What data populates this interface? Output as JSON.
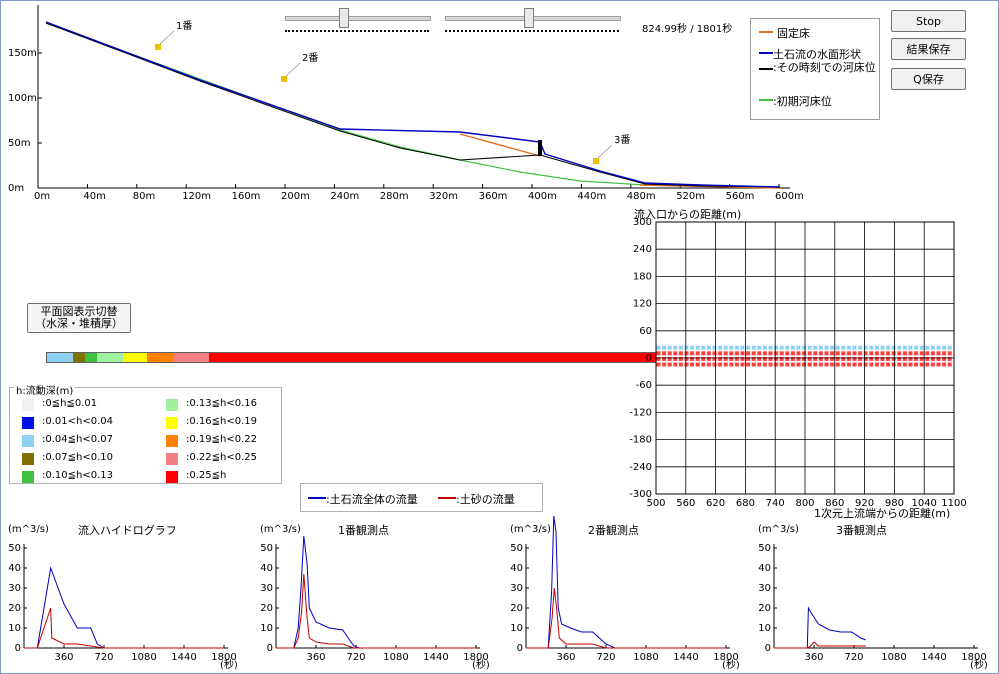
{
  "profile": {
    "points": [
      {
        "label": "1番",
        "x": 95
      },
      {
        "label": "2番",
        "x": 197
      },
      {
        "label": "3番",
        "x": 446
      }
    ],
    "y_ticks": [
      "0m",
      "50m",
      "100m",
      "150m"
    ],
    "x_ticks": [
      "0m",
      "40m",
      "80m",
      "120m",
      "160m",
      "200m",
      "240m",
      "280m",
      "320m",
      "360m",
      "400m",
      "440m",
      "480m",
      "520m",
      "560m",
      "600m"
    ],
    "time_current": "824.99秒",
    "time_separator": "/",
    "time_total": "1801秒"
  },
  "legend_top": {
    "items": [
      {
        "label": "固定床",
        "color": "#e07020"
      },
      {
        "label": "土石流の水面形状",
        "color": "#0000c0"
      },
      {
        "label": ":その時刻での河床位",
        "color": "#000000"
      },
      {
        "label": ":初期河床位",
        "color": "#40c040"
      }
    ]
  },
  "buttons": {
    "stop": "Stop",
    "save_results": "結果保存",
    "save_q": "Q保存",
    "toggle_line1": "平面図表示切替",
    "toggle_line2": "（水深・堆積厚）"
  },
  "plan_view": {
    "title": "流入口からの距離(m)",
    "x_axis_title": "1次元上流端からの距離(m)",
    "x_ticks": [
      "500",
      "560",
      "620",
      "680",
      "740",
      "800",
      "860",
      "920",
      "980",
      "1040",
      "1100"
    ],
    "y_ticks": [
      "300",
      "240",
      "180",
      "120",
      "60",
      "0",
      "-60",
      "-120",
      "-180",
      "-240",
      "-300"
    ]
  },
  "depth_legend": {
    "title": "h:流動深(m)",
    "items": [
      {
        "label": ":0≦h≦0.01",
        "color": "#f0f0f0"
      },
      {
        "label": ":0.01<h<0.04",
        "color": "#0010e0"
      },
      {
        "label": ":0.04≦h<0.07",
        "color": "#90d0f0"
      },
      {
        "label": ":0.07≦h<0.10",
        "color": "#807000"
      },
      {
        "label": ":0.10≦h<0.13",
        "color": "#40c040"
      },
      {
        "label": ":0.13≦h<0.16",
        "color": "#a0f0a0"
      },
      {
        "label": ":0.16≦h<0.19",
        "color": "#ffff00"
      },
      {
        "label": ":0.19≦h<0.22",
        "color": "#ff8000"
      },
      {
        "label": ":0.22≦h<0.25",
        "color": "#f08080"
      },
      {
        "label": ":0.25≦h",
        "color": "#ff0000"
      }
    ]
  },
  "hydro_legend": {
    "total": ":土石流全体の流量",
    "sediment": ":土砂の流量",
    "total_color": "#0000c0",
    "sediment_color": "#c00000"
  },
  "hydrographs": [
    {
      "title": "流入ハイドログラフ",
      "unit": "(m^3/s)",
      "time_unit": "(秒)",
      "y_ticks": [
        "0",
        "10",
        "20",
        "30",
        "40",
        "50"
      ],
      "x_ticks": [
        "360",
        "720",
        "1080",
        "1440",
        "1800"
      ]
    },
    {
      "title": "1番観測点",
      "unit": "(m^3/s)",
      "time_unit": "(秒)",
      "y_ticks": [
        "0",
        "10",
        "20",
        "30",
        "40",
        "50"
      ],
      "x_ticks": [
        "360",
        "720",
        "1080",
        "1440",
        "1800"
      ]
    },
    {
      "title": "2番観測点",
      "unit": "(m^3/s)",
      "time_unit": "(秒)",
      "y_ticks": [
        "0",
        "10",
        "20",
        "30",
        "40",
        "50"
      ],
      "x_ticks": [
        "360",
        "720",
        "1080",
        "1440",
        "1800"
      ]
    },
    {
      "title": "3番観測点",
      "unit": "(m^3/s)",
      "time_unit": "(秒)",
      "y_ticks": [
        "0",
        "10",
        "20",
        "30",
        "40",
        "50"
      ],
      "x_ticks": [
        "360",
        "720",
        "1080",
        "1440",
        "1800"
      ]
    }
  ],
  "chart_data": [
    {
      "type": "line",
      "title": "流入ハイドログラフ",
      "series": [
        {
          "name": "土石流全体の流量",
          "x": [
            0,
            120,
            240,
            360,
            480,
            600,
            660,
            720,
            1800
          ],
          "values": [
            0,
            0,
            40,
            22,
            10,
            10,
            2,
            0,
            0
          ]
        },
        {
          "name": "土砂の流量",
          "x": [
            0,
            120,
            240,
            250,
            360,
            480,
            600,
            720,
            1800
          ],
          "values": [
            0,
            0,
            20,
            5,
            2,
            2,
            1,
            0,
            0
          ]
        }
      ],
      "ylim": [
        0,
        50
      ],
      "xlim": [
        0,
        1800
      ]
    },
    {
      "title": "1番観測点",
      "type": "line",
      "series": [
        {
          "name": "土石流全体の流量",
          "x": [
            0,
            160,
            200,
            225,
            250,
            280,
            300,
            360,
            480,
            600,
            700,
            750,
            1800
          ],
          "values": [
            0,
            0,
            10,
            30,
            56,
            42,
            20,
            13,
            10,
            9,
            1,
            0,
            0
          ]
        },
        {
          "name": "土砂の流量",
          "x": [
            0,
            160,
            200,
            230,
            250,
            280,
            300,
            360,
            480,
            600,
            700,
            750,
            1800
          ],
          "values": [
            0,
            0,
            5,
            18,
            37,
            15,
            5,
            3,
            2,
            2,
            0,
            0,
            0
          ]
        }
      ],
      "ylim": [
        0,
        50
      ],
      "xlim": [
        0,
        1800
      ]
    },
    {
      "title": "2番観測点",
      "type": "line",
      "series": [
        {
          "name": "土石流全体の流量",
          "x": [
            0,
            200,
            230,
            250,
            270,
            290,
            320,
            400,
            500,
            600,
            720,
            800,
            1800
          ],
          "values": [
            0,
            0,
            28,
            66,
            58,
            20,
            12,
            10,
            8,
            8,
            2,
            0,
            0
          ]
        },
        {
          "name": "土砂の流量",
          "x": [
            0,
            200,
            235,
            255,
            275,
            300,
            360,
            480,
            600,
            720,
            800,
            1800
          ],
          "values": [
            0,
            0,
            15,
            30,
            20,
            5,
            2,
            2,
            2,
            0,
            0,
            0
          ]
        }
      ],
      "ylim": [
        0,
        50
      ],
      "xlim": [
        0,
        1800
      ]
    },
    {
      "title": "3番観測点",
      "type": "line",
      "series": [
        {
          "name": "土石流全体の流量",
          "x": [
            0,
            300,
            310,
            330,
            400,
            500,
            600,
            700,
            780,
            825
          ],
          "values": [
            0,
            0,
            20,
            18,
            12,
            9,
            8,
            8,
            5,
            4
          ]
        },
        {
          "name": "土砂の流量",
          "x": [
            0,
            300,
            330,
            360,
            400,
            500,
            600,
            700,
            825
          ],
          "values": [
            0,
            0,
            1,
            3,
            1,
            1,
            1,
            1,
            1
          ]
        }
      ],
      "ylim": [
        0,
        50
      ],
      "xlim": [
        0,
        1800
      ]
    }
  ]
}
